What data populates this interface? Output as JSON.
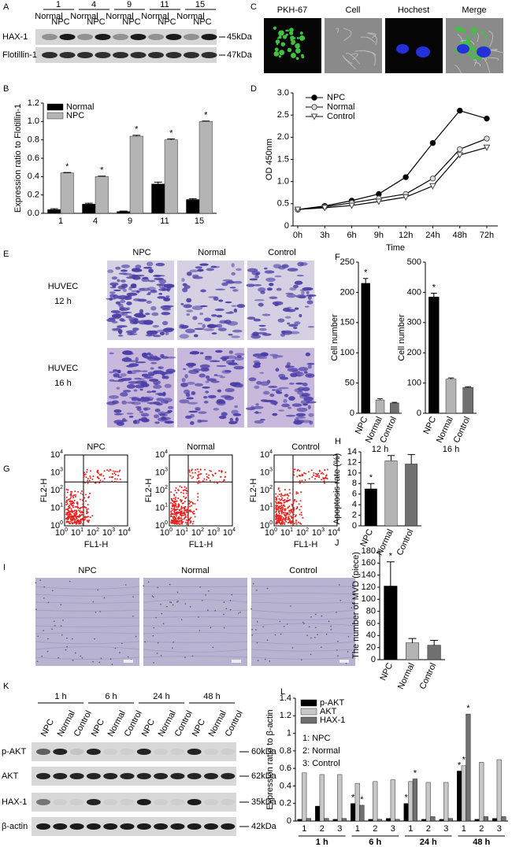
{
  "panel_labels": [
    "A",
    "B",
    "C",
    "D",
    "E",
    "F",
    "G",
    "H",
    "I",
    "J",
    "K",
    "L"
  ],
  "blot_a": {
    "groups": [
      "1",
      "4",
      "9",
      "11",
      "15"
    ],
    "lanes": [
      "Normal",
      "NPC"
    ],
    "rows": [
      "HAX-1",
      "Flotillin-1"
    ],
    "sizes": [
      "45kDa",
      "47kDa"
    ]
  },
  "imaging_c": {
    "titles": [
      "PKH-67",
      "Cell",
      "Hochest",
      "Merge"
    ]
  },
  "migration_e": {
    "columns": [
      "NPC",
      "Normal",
      "Control"
    ],
    "rows": [
      [
        "HUVEC",
        "12 h"
      ],
      [
        "HUVEC",
        "16 h"
      ]
    ]
  },
  "flow_g": {
    "titles": [
      "NPC",
      "Normal",
      "Control"
    ],
    "y_label": "FL2-H",
    "x_label": "FL1-H",
    "tick_base": "10",
    "tick_exponents": [
      "0",
      "1",
      "2",
      "3",
      "4"
    ]
  },
  "tube_i": {
    "titles": [
      "NPC",
      "Normal",
      "Control"
    ]
  },
  "blot_k": {
    "times": [
      "1 h",
      "6 h",
      "24 h",
      "48 h"
    ],
    "lanes": [
      "NPC",
      "Normal",
      "Control"
    ],
    "rows": [
      "p-AKT",
      "AKT",
      "HAX-1",
      "β-actin"
    ],
    "sizes": [
      "60kDa",
      "62kDa",
      "35kDa",
      "42kDa"
    ]
  },
  "chart_data": [
    {
      "type": "bar",
      "categories": [
        "1",
        "4",
        "9",
        "11",
        "15"
      ],
      "series": [
        {
          "name": "Normal",
          "color": "#000000",
          "values": [
            0.04,
            0.1,
            0.02,
            0.32,
            0.15
          ],
          "errors": [
            0.01,
            0.01,
            0.005,
            0.02,
            0.01
          ]
        },
        {
          "name": "NPC",
          "color": "#b4b4b4",
          "values": [
            0.44,
            0.4,
            0.84,
            0.8,
            1.0
          ],
          "errors": [
            0.005,
            0.005,
            0.01,
            0.01,
            0.005
          ],
          "annotations": [
            "*",
            "*",
            "*",
            "*",
            "*"
          ]
        }
      ],
      "ylabel": "Expression ratio to Flotillin-1",
      "ylim": [
        0,
        1.2
      ],
      "yticks": [
        {
          "value": 0,
          "label": "0.0"
        },
        0.2,
        0.4,
        0.6,
        0.8,
        {
          "value": 1,
          "label": "1.0"
        },
        1.2
      ],
      "legend": "upper left"
    },
    {
      "type": "line",
      "categories": [
        "0h",
        "3h",
        "6h",
        "9h",
        "12h",
        "24h",
        "48h",
        "72h"
      ],
      "series": [
        {
          "name": "NPC",
          "color": "#000000",
          "marker": "circle",
          "values": [
            0.37,
            0.45,
            0.57,
            0.72,
            1.1,
            1.87,
            2.6,
            2.42
          ]
        },
        {
          "name": "Normal",
          "color": "#888888",
          "marker": "circle-open",
          "values": [
            0.37,
            0.43,
            0.52,
            0.62,
            0.72,
            1.07,
            1.73,
            1.97
          ]
        },
        {
          "name": "Control",
          "color": "#444444",
          "marker": "triangle-down",
          "values": [
            0.37,
            0.41,
            0.46,
            0.55,
            0.65,
            0.9,
            1.6,
            1.77
          ]
        }
      ],
      "xlabel": "Time",
      "ylabel": "OD 450nm",
      "ylim": [
        0,
        3
      ],
      "yticks": [
        0,
        0.5,
        {
          "value": 1,
          "label": "1.0"
        },
        1.5,
        {
          "value": 2,
          "label": "2.0"
        },
        2.5,
        {
          "value": 3,
          "label": "3.0"
        }
      ],
      "legend": "upper left"
    },
    {
      "type": "bar",
      "categories": [
        "NPC",
        "Normal",
        "Control"
      ],
      "series": [
        {
          "colors": [
            "#000000",
            "#b4b4b4",
            "#707070"
          ],
          "values": [
            215,
            22,
            17
          ],
          "errors": [
            8,
            2,
            1
          ],
          "annotations": [
            "*",
            null,
            null
          ]
        }
      ],
      "xlabel": "12 h",
      "ylabel": "Cell number",
      "ylim": [
        0,
        250
      ],
      "yticks": [
        0,
        50,
        100,
        150,
        200,
        250
      ]
    },
    {
      "type": "bar",
      "categories": [
        "NPC",
        "Normal",
        "Control"
      ],
      "series": [
        {
          "colors": [
            "#000000",
            "#b4b4b4",
            "#707070"
          ],
          "values": [
            385,
            113,
            85
          ],
          "errors": [
            12,
            4,
            3
          ],
          "annotations": [
            "*",
            null,
            null
          ]
        }
      ],
      "xlabel": "16 h",
      "ylabel": "Cell number",
      "ylim": [
        0,
        500
      ],
      "yticks": [
        0,
        100,
        200,
        300,
        400,
        500
      ]
    },
    {
      "type": "bar",
      "categories": [
        "NPC",
        "Normal",
        "Control"
      ],
      "series": [
        {
          "colors": [
            "#000000",
            "#b4b4b4",
            "#707070"
          ],
          "values": [
            7,
            12.3,
            11.7
          ],
          "errors": [
            1,
            1,
            1.8
          ],
          "annotations": [
            "*",
            null,
            null
          ]
        }
      ],
      "ylabel": "Apoptosis rate (%)",
      "ylim": [
        0,
        14
      ],
      "yticks": [
        0,
        2,
        4,
        6,
        8,
        10,
        12,
        14
      ]
    },
    {
      "type": "bar",
      "categories": [
        "NPC",
        "Normal",
        "Control"
      ],
      "series": [
        {
          "colors": [
            "#000000",
            "#b4b4b4",
            "#707070"
          ],
          "values": [
            122,
            28,
            24
          ],
          "errors": [
            40,
            7,
            8
          ],
          "annotations": [
            "*",
            null,
            null
          ]
        }
      ],
      "ylabel": "The number of MVD (piece)",
      "ylim": [
        0,
        180
      ],
      "yticks": [
        0,
        20,
        40,
        60,
        80,
        100,
        120,
        140,
        160,
        180
      ]
    },
    {
      "type": "bar",
      "categories": [
        "1",
        "2",
        "3",
        "1",
        "2",
        "3",
        "1",
        "2",
        "3",
        "1",
        "2",
        "3"
      ],
      "groups": [
        "1 h",
        "6 h",
        "24 h",
        "48 h"
      ],
      "series": [
        {
          "name": "p-AKT",
          "color": "#000000",
          "values": [
            0.02,
            0.17,
            0.02,
            0.2,
            0.02,
            0.03,
            0.2,
            0.02,
            0.02,
            0.57,
            0.02,
            0.03
          ],
          "annotations": [
            null,
            null,
            null,
            "*",
            null,
            null,
            "*",
            null,
            null,
            "*",
            null,
            null
          ]
        },
        {
          "name": "AKT",
          "color": "#c8c8c8",
          "values": [
            0.55,
            0.53,
            0.53,
            0.43,
            0.45,
            0.47,
            0.45,
            0.44,
            0.44,
            0.63,
            0.67,
            0.7
          ],
          "annotations": [
            null,
            null,
            null,
            null,
            null,
            null,
            null,
            null,
            null,
            "*",
            null,
            null
          ]
        },
        {
          "name": "HAX-1",
          "color": "#707070",
          "values": [
            0.03,
            0.03,
            0.03,
            0.18,
            0.02,
            0.02,
            0.48,
            0.05,
            0.03,
            1.22,
            0.05,
            0.05
          ],
          "annotations": [
            null,
            null,
            null,
            "*",
            null,
            null,
            "*",
            null,
            null,
            "*",
            null,
            null
          ]
        }
      ],
      "notes": [
        "1:  NPC",
        "2:  Normal",
        "3:  Control"
      ],
      "ylabel": "Expression ratio to β-actin",
      "ylim": [
        0,
        1.4
      ],
      "yticks": [
        0,
        0.2,
        0.4,
        0.6,
        0.8,
        1,
        1.2,
        1.4
      ],
      "legend": "upper left"
    }
  ]
}
